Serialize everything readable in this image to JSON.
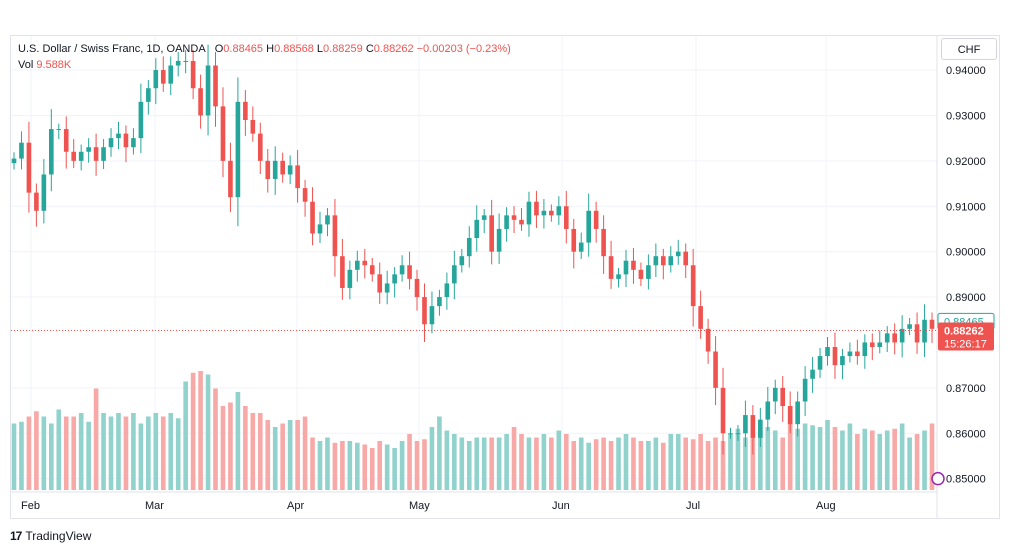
{
  "legend": {
    "symbol": "U.S. Dollar / Swiss Franc, 1D, OANDA",
    "o_label": "O",
    "o_value": "0.88465",
    "h_label": "H",
    "h_value": "0.88568",
    "l_label": "L",
    "l_value": "0.88259",
    "c_label": "C",
    "c_value": "0.88262",
    "change": "−0.00203 (−0.23%)",
    "vol_label": "Vol",
    "vol_value": "9.588K"
  },
  "currency_button": "CHF",
  "price_tags": {
    "open_tag": "0.88465",
    "last_price": "0.88262",
    "countdown": "15:26:17"
  },
  "footer": {
    "brand": "TradingView",
    "logo": "17"
  },
  "colors": {
    "up": "#26a69a",
    "down": "#ef5350",
    "up_vol": "#92d2cc",
    "down_vol": "#f7a9a7"
  },
  "chart_data": {
    "type": "candlestick",
    "symbol": "USDCHF",
    "interval": "1D",
    "ylim": [
      0.8475,
      0.9475
    ],
    "y_ticks": [
      "0.94000",
      "0.93000",
      "0.92000",
      "0.91000",
      "0.90000",
      "0.89000",
      "0.87000",
      "0.86000",
      "0.85000"
    ],
    "x_ticks": [
      "Feb",
      "Mar",
      "Apr",
      "May",
      "Jun",
      "Jul",
      "Aug"
    ],
    "grid": true,
    "last_close": 0.88262,
    "closes": [
      0.9205,
      0.924,
      0.913,
      0.909,
      0.917,
      0.927,
      0.927,
      0.922,
      0.92,
      0.922,
      0.923,
      0.92,
      0.923,
      0.925,
      0.926,
      0.923,
      0.925,
      0.933,
      0.936,
      0.94,
      0.937,
      0.941,
      0.942,
      0.942,
      0.936,
      0.93,
      0.941,
      0.932,
      0.92,
      0.912,
      0.933,
      0.929,
      0.926,
      0.92,
      0.916,
      0.92,
      0.917,
      0.919,
      0.914,
      0.911,
      0.904,
      0.906,
      0.908,
      0.899,
      0.892,
      0.896,
      0.898,
      0.897,
      0.895,
      0.891,
      0.893,
      0.895,
      0.897,
      0.894,
      0.89,
      0.884,
      0.888,
      0.89,
      0.893,
      0.897,
      0.899,
      0.903,
      0.907,
      0.908,
      0.9,
      0.905,
      0.908,
      0.907,
      0.906,
      0.911,
      0.908,
      0.909,
      0.908,
      0.91,
      0.905,
      0.9,
      0.902,
      0.909,
      0.905,
      0.899,
      0.894,
      0.895,
      0.898,
      0.896,
      0.894,
      0.897,
      0.899,
      0.897,
      0.899,
      0.9,
      0.897,
      0.888,
      0.883,
      0.878,
      0.87,
      0.86,
      0.86,
      0.86,
      0.864,
      0.859,
      0.863,
      0.867,
      0.87,
      0.866,
      0.862,
      0.867,
      0.872,
      0.874,
      0.877,
      0.879,
      0.875,
      0.877,
      0.878,
      0.877,
      0.88,
      0.879,
      0.88,
      0.882,
      0.88,
      0.883,
      0.884,
      0.88,
      0.885,
      0.883
    ],
    "volumes": [
      38,
      39,
      42,
      45,
      42,
      38,
      46,
      42,
      42,
      44,
      39,
      58,
      44,
      42,
      44,
      42,
      44,
      38,
      42,
      44,
      42,
      44,
      41,
      62,
      67,
      68,
      66,
      58,
      48,
      50,
      56,
      48,
      44,
      44,
      40,
      36,
      38,
      40,
      40,
      42,
      30,
      28,
      30,
      27,
      28,
      28,
      27,
      26,
      24,
      28,
      26,
      24,
      28,
      32,
      28,
      29,
      36,
      42,
      34,
      32,
      30,
      28,
      30,
      30,
      30,
      30,
      32,
      36,
      32,
      30,
      30,
      32,
      30,
      34,
      32,
      28,
      30,
      27,
      29,
      30,
      28,
      30,
      32,
      30,
      28,
      28,
      30,
      27,
      32,
      32,
      30,
      29,
      32,
      28,
      30,
      28,
      32,
      35,
      30,
      32,
      34,
      36,
      34,
      30,
      38,
      35,
      38,
      37,
      36,
      40,
      36,
      34,
      38,
      32,
      35,
      34,
      32,
      34,
      35,
      38,
      30,
      32,
      34,
      38
    ]
  }
}
